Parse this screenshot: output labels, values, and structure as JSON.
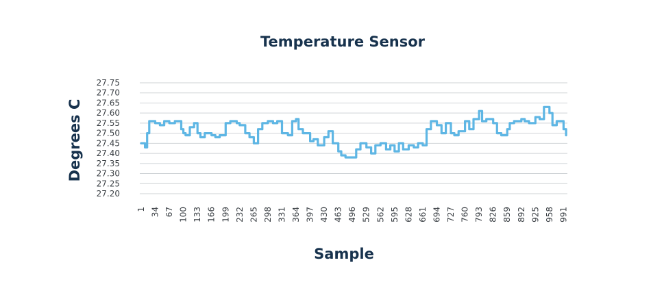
{
  "chart_data": {
    "type": "line",
    "title": "Temperature Sensor",
    "xlabel": "Sample",
    "ylabel": "Degrees C",
    "ylim": [
      27.2,
      27.75
    ],
    "y_ticks": [
      "27.75",
      "27.70",
      "27.65",
      "27.60",
      "27.55",
      "27.50",
      "27.45",
      "27.40",
      "27.35",
      "27.30",
      "27.25",
      "27.20"
    ],
    "x_ticks": [
      "1",
      "34",
      "67",
      "100",
      "133",
      "166",
      "199",
      "232",
      "265",
      "298",
      "331",
      "364",
      "397",
      "430",
      "463",
      "496",
      "529",
      "562",
      "595",
      "628",
      "661",
      "694",
      "727",
      "760",
      "793",
      "826",
      "859",
      "892",
      "925",
      "958",
      "991"
    ],
    "x_range": [
      1,
      1000
    ],
    "grid": true,
    "legend": "none",
    "color": "#5eb6e4",
    "series": [
      {
        "x": [
          1,
          10,
          15,
          20,
          34,
          45,
          55,
          67,
          80,
          95,
          100,
          105,
          115,
          125,
          133,
          140,
          150,
          166,
          175,
          185,
          199,
          210,
          225,
          232,
          245,
          255,
          265,
          275,
          285,
          298,
          310,
          320,
          331,
          345,
          355,
          364,
          370,
          380,
          397,
          405,
          415,
          430,
          440,
          450,
          463,
          470,
          480,
          496,
          505,
          515,
          529,
          540,
          550,
          562,
          575,
          585,
          595,
          605,
          615,
          628,
          640,
          650,
          661,
          670,
          680,
          694,
          705,
          715,
          727,
          735,
          745,
          760,
          770,
          780,
          793,
          800,
          810,
          826,
          835,
          845,
          859,
          865,
          875,
          892,
          900,
          910,
          925,
          935,
          945,
          958,
          965,
          975,
          991,
          997
        ],
        "y": [
          27.45,
          27.43,
          27.5,
          27.56,
          27.55,
          27.54,
          27.56,
          27.55,
          27.56,
          27.52,
          27.5,
          27.49,
          27.53,
          27.55,
          27.5,
          27.48,
          27.5,
          27.49,
          27.48,
          27.49,
          27.55,
          27.56,
          27.55,
          27.54,
          27.5,
          27.48,
          27.45,
          27.52,
          27.55,
          27.56,
          27.55,
          27.56,
          27.5,
          27.49,
          27.56,
          27.57,
          27.52,
          27.5,
          27.46,
          27.47,
          27.44,
          27.48,
          27.51,
          27.45,
          27.41,
          27.39,
          27.38,
          27.38,
          27.42,
          27.45,
          27.43,
          27.4,
          27.44,
          27.45,
          27.42,
          27.44,
          27.41,
          27.45,
          27.42,
          27.44,
          27.43,
          27.45,
          27.44,
          27.52,
          27.56,
          27.54,
          27.5,
          27.55,
          27.5,
          27.49,
          27.51,
          27.56,
          27.52,
          27.57,
          27.61,
          27.56,
          27.57,
          27.55,
          27.5,
          27.49,
          27.52,
          27.55,
          27.56,
          27.57,
          27.56,
          27.55,
          27.58,
          27.57,
          27.63,
          27.6,
          27.54,
          27.56,
          27.52,
          27.49
        ]
      }
    ]
  }
}
